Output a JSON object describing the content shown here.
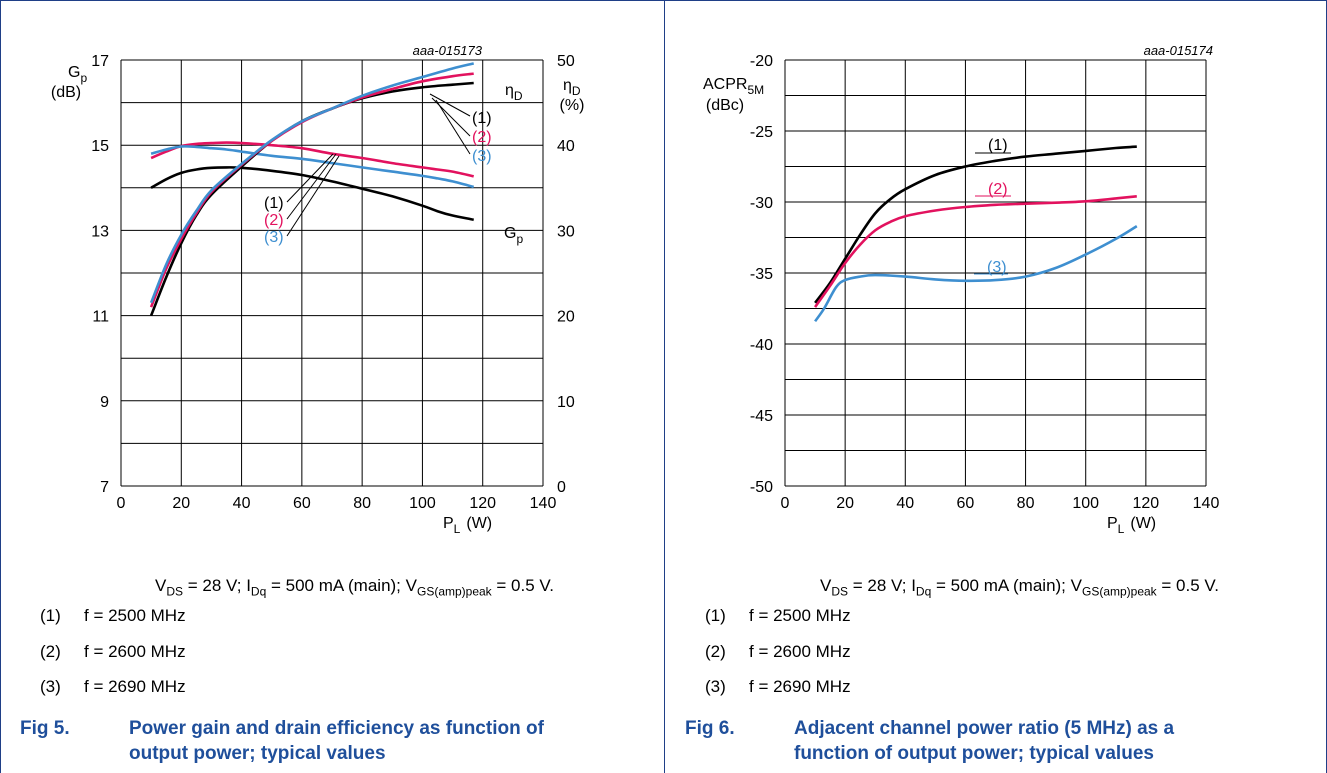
{
  "colors": {
    "series1": "#000000",
    "series2": "#e2125e",
    "series3": "#3e8fd0",
    "frame": "#1f3f87",
    "caption": "#1f4f9b"
  },
  "figures": [
    {
      "code": "aaa-015173",
      "conditions": {
        "vds": "V",
        "vds_sub": "DS",
        "vds_text": " = 28 V; ",
        "idq": "I",
        "idq_sub": "Dq",
        "idq_text": " = 500 mA (main); ",
        "vgs": "V",
        "vgs_sub": "GS(amp)peak",
        "vgs_text": " = 0.5 V."
      },
      "legend": [
        {
          "num": "(1)",
          "text": "f = 2500 MHz"
        },
        {
          "num": "(2)",
          "text": "f = 2600 MHz"
        },
        {
          "num": "(3)",
          "text": "f = 2690 MHz"
        }
      ],
      "caption_num": "Fig 5.",
      "caption_line1": "Power gain and drain efficiency as function of",
      "caption_line2": "output power; typical values",
      "axis_left_label_main": "G",
      "axis_left_label_sub": "p",
      "axis_left_unit": "(dB)",
      "axis_right_label_main": "η",
      "axis_right_label_sub": "D",
      "axis_right_unit": "(%)",
      "x_label_main": "P",
      "x_label_sub": "L",
      "x_label_unit": "(W)",
      "curve_label_eta": "η",
      "curve_label_eta_sub": "D",
      "curve_label_gp": "G",
      "curve_label_gp_sub": "p",
      "marker_labels": [
        "(1)",
        "(2)",
        "(3)"
      ]
    },
    {
      "code": "aaa-015174",
      "conditions": {
        "vds": "V",
        "vds_sub": "DS",
        "vds_text": " = 28 V; ",
        "idq": "I",
        "idq_sub": "Dq",
        "idq_text": " = 500 mA (main); ",
        "vgs": "V",
        "vgs_sub": "GS(amp)peak",
        "vgs_text": " = 0.5 V."
      },
      "legend": [
        {
          "num": "(1)",
          "text": "f = 2500 MHz"
        },
        {
          "num": "(2)",
          "text": "f = 2600 MHz"
        },
        {
          "num": "(3)",
          "text": "f = 2690 MHz"
        }
      ],
      "caption_num": "Fig 6.",
      "caption_line1": "Adjacent channel power ratio (5 MHz) as a",
      "caption_line2": "function of output power; typical values",
      "y_label_main": "ACPR",
      "y_label_sub": "5M",
      "y_label_unit": "(dBc)",
      "x_label_main": "P",
      "x_label_sub": "L",
      "x_label_unit": "(W)",
      "marker_labels": [
        "(1)",
        "(2)",
        "(3)"
      ]
    }
  ],
  "chart_data": [
    {
      "type": "line",
      "x_ticks": [
        0,
        20,
        40,
        60,
        80,
        100,
        120,
        140
      ],
      "xlim": [
        0,
        140
      ],
      "y_left_ticks": [
        7,
        9,
        11,
        13,
        15,
        17
      ],
      "ylim_left": [
        7,
        17
      ],
      "y_right_ticks": [
        0,
        10,
        20,
        30,
        40,
        50
      ],
      "ylim_right": [
        0,
        50
      ],
      "gain_series": [
        {
          "name": "(1)",
          "axis": "left",
          "x": [
            10,
            15,
            20,
            25,
            30,
            35,
            40,
            50,
            60,
            70,
            80,
            90,
            100,
            105,
            110,
            117
          ],
          "y": [
            14.0,
            14.2,
            14.35,
            14.43,
            14.47,
            14.48,
            14.47,
            14.4,
            14.3,
            14.15,
            13.98,
            13.8,
            13.58,
            13.45,
            13.35,
            13.25
          ]
        },
        {
          "name": "(2)",
          "axis": "left",
          "x": [
            10,
            15,
            20,
            25,
            30,
            35,
            40,
            50,
            60,
            70,
            80,
            90,
            100,
            105,
            110,
            117
          ],
          "y": [
            14.7,
            14.85,
            14.98,
            15.03,
            15.05,
            15.06,
            15.05,
            15.0,
            14.93,
            14.8,
            14.7,
            14.58,
            14.48,
            14.43,
            14.38,
            14.27
          ]
        },
        {
          "name": "(3)",
          "axis": "left",
          "x": [
            10,
            15,
            20,
            25,
            30,
            35,
            40,
            50,
            60,
            70,
            80,
            90,
            100,
            105,
            110,
            117
          ],
          "y": [
            14.8,
            14.9,
            14.97,
            14.96,
            14.93,
            14.9,
            14.85,
            14.75,
            14.68,
            14.58,
            14.48,
            14.38,
            14.28,
            14.22,
            14.15,
            14.02
          ]
        }
      ],
      "efficiency_series": [
        {
          "name": "(1)",
          "axis": "right",
          "x": [
            10,
            15,
            20,
            25,
            30,
            40,
            50,
            60,
            70,
            80,
            90,
            100,
            110,
            117
          ],
          "y": [
            20.0,
            24.5,
            28.5,
            31.8,
            34.2,
            37.5,
            40.5,
            42.8,
            44.3,
            45.5,
            46.3,
            46.8,
            47.1,
            47.3
          ]
        },
        {
          "name": "(2)",
          "axis": "right",
          "x": [
            10,
            15,
            20,
            25,
            30,
            40,
            50,
            60,
            70,
            80,
            90,
            100,
            110,
            117
          ],
          "y": [
            21.0,
            25.5,
            29.0,
            32.0,
            34.5,
            37.7,
            40.5,
            42.7,
            44.3,
            45.6,
            46.6,
            47.5,
            48.1,
            48.4
          ]
        },
        {
          "name": "(3)",
          "axis": "right",
          "x": [
            10,
            15,
            20,
            25,
            30,
            40,
            50,
            60,
            70,
            80,
            90,
            100,
            110,
            117
          ],
          "y": [
            21.5,
            26.0,
            29.5,
            32.3,
            34.7,
            37.8,
            40.6,
            42.8,
            44.3,
            45.8,
            47.0,
            48.0,
            49.0,
            49.6
          ]
        }
      ]
    },
    {
      "type": "line",
      "x_ticks": [
        0,
        20,
        40,
        60,
        80,
        100,
        120,
        140
      ],
      "xlim": [
        0,
        140
      ],
      "y_ticks": [
        -50,
        -45,
        -40,
        -35,
        -30,
        -25,
        -20
      ],
      "ylim": [
        -50,
        -20
      ],
      "series": [
        {
          "name": "(1)",
          "x": [
            10,
            15,
            20,
            25,
            30,
            35,
            40,
            50,
            60,
            70,
            80,
            90,
            100,
            110,
            117
          ],
          "y": [
            -37.1,
            -35.7,
            -34.0,
            -32.3,
            -30.8,
            -29.8,
            -29.1,
            -28.1,
            -27.5,
            -27.1,
            -26.8,
            -26.6,
            -26.4,
            -26.2,
            -26.1
          ]
        },
        {
          "name": "(2)",
          "x": [
            10,
            15,
            20,
            25,
            30,
            35,
            40,
            50,
            60,
            70,
            80,
            90,
            100,
            110,
            117
          ],
          "y": [
            -37.4,
            -35.9,
            -34.3,
            -33.0,
            -32.0,
            -31.4,
            -31.0,
            -30.6,
            -30.35,
            -30.2,
            -30.12,
            -30.05,
            -29.95,
            -29.75,
            -29.6
          ]
        },
        {
          "name": "(3)",
          "x": [
            10,
            13,
            17,
            20,
            25,
            30,
            40,
            50,
            60,
            70,
            80,
            90,
            100,
            110,
            117
          ],
          "y": [
            -38.4,
            -37.5,
            -36.0,
            -35.5,
            -35.25,
            -35.15,
            -35.25,
            -35.45,
            -35.55,
            -35.5,
            -35.25,
            -34.65,
            -33.7,
            -32.6,
            -31.7
          ]
        }
      ]
    }
  ]
}
